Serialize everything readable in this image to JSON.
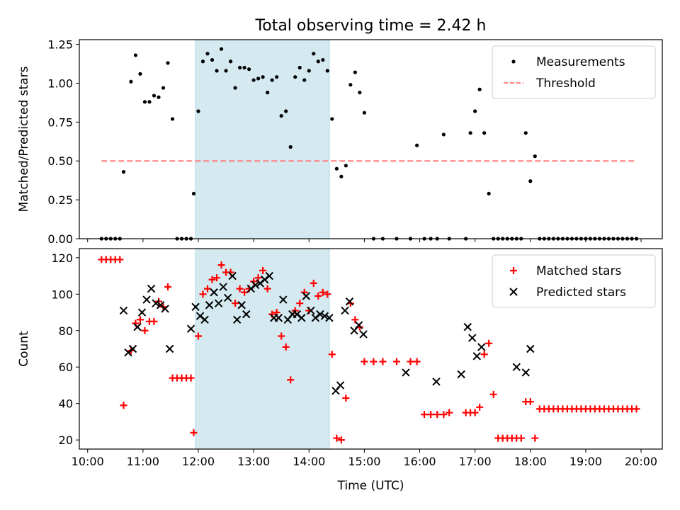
{
  "figure": {
    "title": "Total observing time = 2.42 h"
  },
  "chart_data": [
    {
      "type": "scatter",
      "ylabel": "Matched/Predicted stars",
      "xlim": [
        "09:51",
        "20:23"
      ],
      "ylim": [
        0,
        1.28
      ],
      "yticks": [
        0,
        0.25,
        0.5,
        0.75,
        1.0,
        1.25
      ],
      "ytick_labels": [
        "0.00",
        "0.25",
        "0.50",
        "0.75",
        "1.00",
        "1.25"
      ],
      "legend_position": "top-right",
      "shaded_interval": {
        "start": "11:57",
        "end": "14:22",
        "color": "#d4eaf0"
      },
      "series": [
        {
          "name": "Measurements",
          "marker": "dot",
          "color": "#000000",
          "x": [
            "10:15",
            "10:20",
            "10:25",
            "10:30",
            "10:35",
            "10:39",
            "10:47",
            "10:52",
            "10:57",
            "11:02",
            "11:07",
            "11:12",
            "11:17",
            "11:22",
            "11:27",
            "11:32",
            "11:37",
            "11:42",
            "11:47",
            "11:52",
            "11:55",
            "12:00",
            "12:05",
            "12:10",
            "12:15",
            "12:20",
            "12:25",
            "12:30",
            "12:35",
            "12:40",
            "12:45",
            "12:50",
            "12:55",
            "13:00",
            "13:05",
            "13:10",
            "13:15",
            "13:20",
            "13:25",
            "13:30",
            "13:35",
            "13:40",
            "13:45",
            "13:50",
            "13:55",
            "14:00",
            "14:05",
            "14:10",
            "14:15",
            "14:20",
            "14:25",
            "14:30",
            "14:35",
            "14:40",
            "14:45",
            "14:50",
            "14:55",
            "15:00",
            "15:10",
            "15:20",
            "15:35",
            "15:50",
            "15:57",
            "16:05",
            "16:12",
            "16:19",
            "16:26",
            "16:32",
            "16:50",
            "16:55",
            "17:00",
            "17:05",
            "17:10",
            "17:15",
            "17:20",
            "17:25",
            "17:30",
            "17:35",
            "17:40",
            "17:45",
            "17:50",
            "17:55",
            "18:00",
            "18:05",
            "18:10",
            "18:15",
            "18:20",
            "18:25",
            "18:30",
            "18:35",
            "18:40",
            "18:45",
            "18:50",
            "18:55",
            "19:00",
            "19:05",
            "19:10",
            "19:15",
            "19:20",
            "19:25",
            "19:30",
            "19:35",
            "19:40",
            "19:45",
            "19:50",
            "19:55"
          ],
          "y": [
            0,
            0,
            0,
            0,
            0,
            0.43,
            1.01,
            1.18,
            1.06,
            0.88,
            0.88,
            0.92,
            0.91,
            0.97,
            1.13,
            0.77,
            0,
            0,
            0,
            0,
            0.29,
            0.82,
            1.14,
            1.19,
            1.15,
            1.08,
            1.22,
            1.08,
            1.14,
            0.97,
            1.1,
            1.1,
            1.09,
            1.02,
            1.03,
            1.04,
            0.94,
            1.02,
            1.04,
            0.79,
            0.82,
            0.59,
            1.04,
            1.1,
            1.02,
            1.08,
            1.19,
            1.14,
            1.15,
            1.08,
            0.77,
            0.45,
            0.4,
            0.47,
            0.99,
            1.07,
            0.94,
            0.81,
            0,
            0,
            0,
            0,
            0.6,
            0,
            0,
            0,
            0.67,
            0,
            0,
            0.68,
            0.82,
            0.96,
            0.68,
            0.29,
            0,
            0,
            0,
            0,
            0,
            0,
            0,
            0.68,
            0.37,
            0.53,
            0,
            0,
            0,
            0,
            0,
            0,
            0,
            0,
            0,
            0,
            0,
            0,
            0,
            0,
            0,
            0,
            0,
            0,
            0,
            0,
            0,
            0
          ]
        },
        {
          "name": "Threshold",
          "marker": "dashed-line",
          "color": "#ff7f7f",
          "x": [
            "10:15",
            "19:55"
          ],
          "y": [
            0.5,
            0.5
          ]
        }
      ]
    },
    {
      "type": "scatter",
      "xlabel": "Time (UTC)",
      "ylabel": "Count",
      "xlim": [
        "09:51",
        "20:23"
      ],
      "ylim": [
        15,
        125
      ],
      "xtick_labels": [
        "10:00",
        "11:00",
        "12:00",
        "13:00",
        "14:00",
        "15:00",
        "16:00",
        "17:00",
        "18:00",
        "19:00",
        "20:00"
      ],
      "yticks": [
        20,
        40,
        60,
        80,
        100,
        120
      ],
      "ytick_labels": [
        "20",
        "40",
        "60",
        "80",
        "100",
        "120"
      ],
      "legend_position": "top-right",
      "shaded_interval": {
        "start": "11:57",
        "end": "14:22",
        "color": "#d4eaf0"
      },
      "series": [
        {
          "name": "Matched stars",
          "marker": "plus",
          "color": "#ff0000",
          "x": [
            "10:15",
            "10:20",
            "10:25",
            "10:30",
            "10:35",
            "10:39",
            "10:47",
            "10:52",
            "10:57",
            "11:02",
            "11:07",
            "11:12",
            "11:17",
            "11:22",
            "11:27",
            "11:32",
            "11:37",
            "11:42",
            "11:47",
            "11:52",
            "11:55",
            "12:00",
            "12:05",
            "12:10",
            "12:15",
            "12:20",
            "12:25",
            "12:30",
            "12:35",
            "12:40",
            "12:45",
            "12:50",
            "12:55",
            "13:00",
            "13:05",
            "13:10",
            "13:15",
            "13:20",
            "13:25",
            "13:30",
            "13:35",
            "13:40",
            "13:45",
            "13:50",
            "13:55",
            "14:00",
            "14:05",
            "14:10",
            "14:15",
            "14:20",
            "14:25",
            "14:30",
            "14:35",
            "14:40",
            "14:45",
            "14:50",
            "14:55",
            "15:00",
            "15:10",
            "15:20",
            "15:35",
            "15:50",
            "15:57",
            "16:05",
            "16:12",
            "16:19",
            "16:26",
            "16:32",
            "16:50",
            "16:55",
            "17:00",
            "17:05",
            "17:10",
            "17:15",
            "17:20",
            "17:25",
            "17:30",
            "17:35",
            "17:40",
            "17:45",
            "17:50",
            "17:55",
            "18:00",
            "18:05",
            "18:10",
            "18:15",
            "18:20",
            "18:25",
            "18:30",
            "18:35",
            "18:40",
            "18:45",
            "18:50",
            "18:55",
            "19:00",
            "19:05",
            "19:10",
            "19:15",
            "19:20",
            "19:25",
            "19:30",
            "19:35",
            "19:40",
            "19:45",
            "19:50",
            "19:55"
          ],
          "y": [
            119,
            119,
            119,
            119,
            119,
            39,
            69,
            84,
            86,
            80,
            85,
            85,
            96,
            93,
            104,
            54,
            54,
            54,
            54,
            54,
            24,
            77,
            100,
            103,
            108,
            109,
            116,
            112,
            112,
            95,
            103,
            101,
            103,
            107,
            109,
            113,
            103,
            89,
            90,
            77,
            71,
            53,
            91,
            95,
            101,
            91,
            106,
            99,
            101,
            100,
            67,
            21,
            20,
            43,
            95,
            86,
            82,
            63,
            63,
            63,
            63,
            63,
            63,
            34,
            34,
            34,
            34,
            35,
            35,
            35,
            35,
            38,
            67,
            73,
            45,
            21,
            21,
            21,
            21,
            21,
            21,
            41,
            41,
            21,
            37,
            37,
            37,
            37,
            37,
            37,
            37,
            37,
            37,
            37,
            37,
            37,
            37,
            37,
            37,
            37,
            37,
            37,
            37,
            37,
            37,
            37
          ],
          "_note": "one value per Measurements x"
        },
        {
          "name": "Predicted stars",
          "marker": "x",
          "color": "#000000",
          "x": [
            "10:39",
            "10:44",
            "10:49",
            "10:54",
            "10:59",
            "11:04",
            "11:09",
            "11:14",
            "11:19",
            "11:24",
            "11:29",
            "11:52",
            "11:57",
            "12:02",
            "12:07",
            "12:12",
            "12:17",
            "12:22",
            "12:27",
            "12:32",
            "12:37",
            "12:42",
            "12:47",
            "12:52",
            "12:57",
            "13:02",
            "13:07",
            "13:12",
            "13:17",
            "13:22",
            "13:27",
            "13:32",
            "13:37",
            "13:42",
            "13:47",
            "13:52",
            "13:57",
            "14:02",
            "14:07",
            "14:12",
            "14:17",
            "14:22",
            "14:29",
            "14:34",
            "14:39",
            "14:44",
            "14:49",
            "14:54",
            "14:59",
            "15:45",
            "16:18",
            "16:45",
            "16:52",
            "16:57",
            "17:02",
            "17:07",
            "17:45",
            "17:55",
            "18:00"
          ],
          "y": [
            91,
            68,
            70,
            82,
            90,
            97,
            103,
            95,
            94,
            92,
            70,
            81,
            93,
            88,
            86,
            94,
            101,
            95,
            104,
            98,
            110,
            86,
            94,
            89,
            103,
            105,
            106,
            108,
            110,
            87,
            87,
            97,
            86,
            89,
            89,
            87,
            99,
            91,
            87,
            89,
            88,
            87,
            47,
            50,
            91,
            96,
            80,
            83,
            78,
            57,
            52,
            56,
            82,
            76,
            66,
            71,
            60,
            57,
            70
          ]
        }
      ]
    }
  ]
}
